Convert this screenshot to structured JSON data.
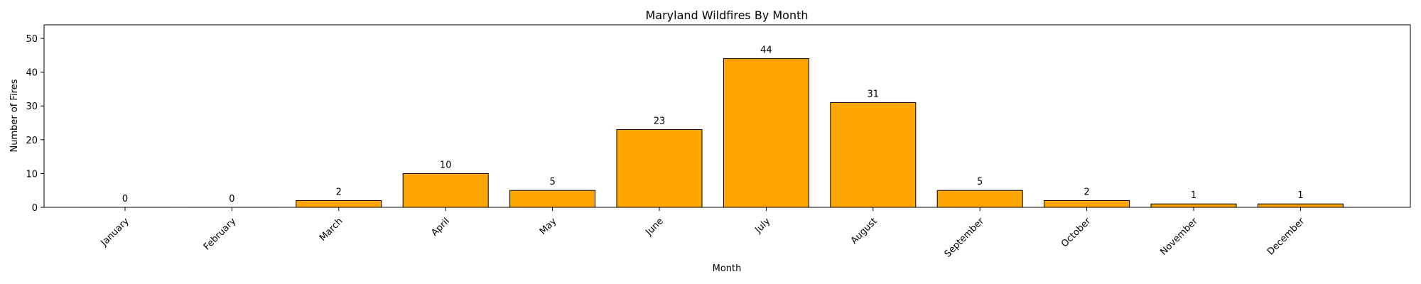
{
  "chart_data": {
    "type": "bar",
    "title": "Maryland Wildfires By Month",
    "xlabel": "Month",
    "ylabel": "Number of Fires",
    "categories": [
      "January",
      "February",
      "March",
      "April",
      "May",
      "June",
      "July",
      "August",
      "September",
      "October",
      "November",
      "December"
    ],
    "values": [
      0,
      0,
      2,
      10,
      5,
      23,
      44,
      31,
      5,
      2,
      1,
      1
    ],
    "data_labels": [
      "0",
      "0",
      "2",
      "10",
      "5",
      "23",
      "44",
      "31",
      "5",
      "2",
      "1",
      "1"
    ],
    "ylim": [
      0,
      54
    ],
    "yticks": [
      0,
      10,
      20,
      30,
      40,
      50
    ],
    "ytick_labels": [
      "0",
      "10",
      "20",
      "30",
      "40",
      "50"
    ],
    "grid": false,
    "legend": "none",
    "bar_color": "#FFA500",
    "bar_edge_color": "#000000"
  }
}
